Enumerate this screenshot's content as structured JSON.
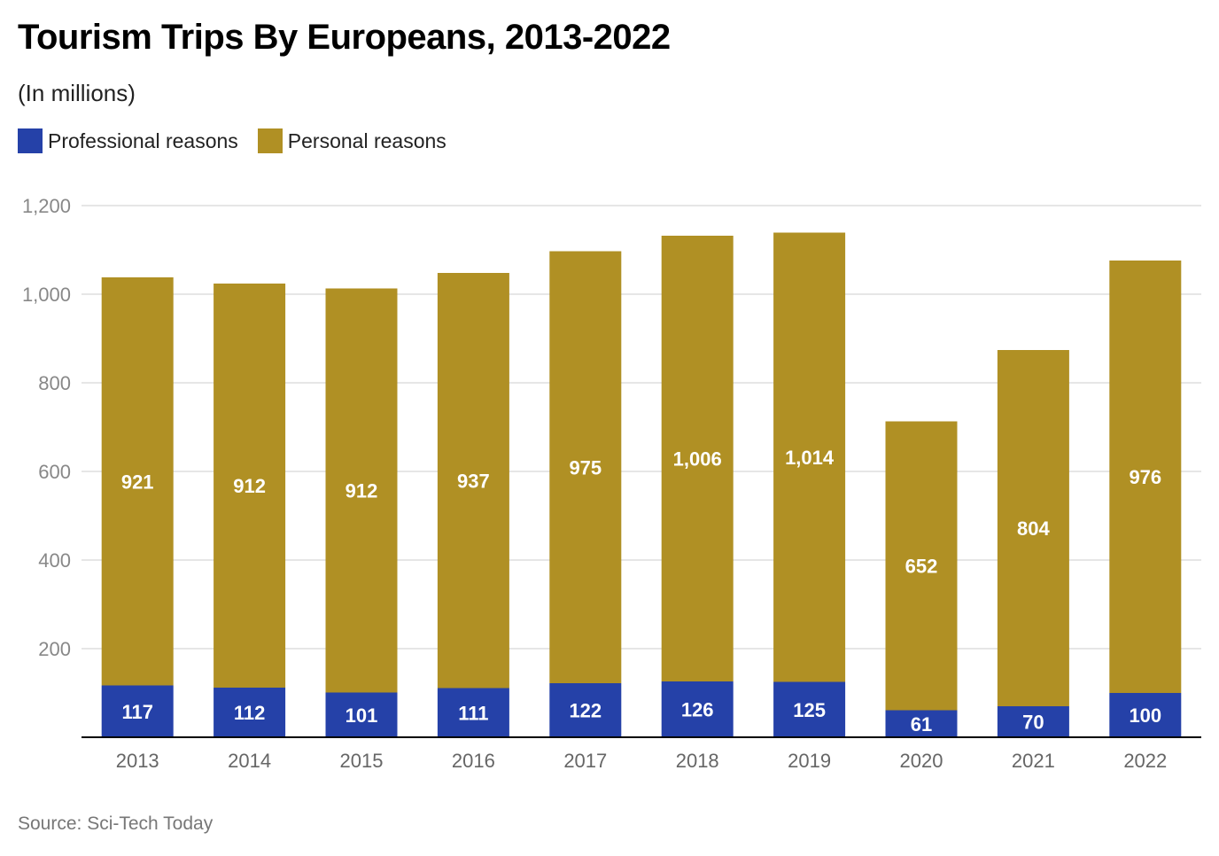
{
  "header": {
    "title": "Tourism Trips By Europeans, 2013-2022",
    "subtitle": "(In millions)"
  },
  "footer": {
    "source": "Source: Sci-Tech Today"
  },
  "colors": {
    "professional": "#2541a8",
    "personal": "#b09024",
    "grid": "#dddddd",
    "axis_text": "#777777",
    "baseline": "#000000"
  },
  "chart_data": {
    "type": "bar",
    "stacked": true,
    "title": "Tourism Trips By Europeans, 2013-2022",
    "subtitle": "(In millions)",
    "xlabel": "",
    "ylabel": "",
    "categories": [
      "2013",
      "2014",
      "2015",
      "2016",
      "2017",
      "2018",
      "2019",
      "2020",
      "2021",
      "2022"
    ],
    "series": [
      {
        "name": "Professional reasons",
        "values": [
          117,
          112,
          101,
          111,
          122,
          126,
          125,
          61,
          70,
          100
        ],
        "labels": [
          "117",
          "112",
          "101",
          "111",
          "122",
          "126",
          "125",
          "61",
          "70",
          "100"
        ]
      },
      {
        "name": "Personal reasons",
        "values": [
          921,
          912,
          912,
          937,
          975,
          1006,
          1014,
          652,
          804,
          976
        ],
        "labels": [
          "921",
          "912",
          "912",
          "937",
          "975",
          "1,006",
          "1,014",
          "652",
          "804",
          "976"
        ]
      }
    ],
    "ylim": [
      0,
      1200
    ],
    "yticks": [
      200,
      400,
      600,
      800,
      1000,
      1200
    ],
    "ytick_labels": [
      "200",
      "400",
      "600",
      "800",
      "1,000",
      "1,200"
    ],
    "grid": true,
    "legend": "top-left"
  }
}
